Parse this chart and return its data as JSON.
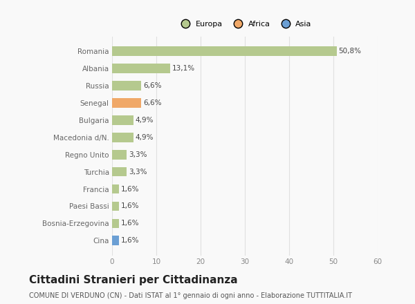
{
  "countries": [
    "Romania",
    "Albania",
    "Russia",
    "Senegal",
    "Bulgaria",
    "Macedonia d/N.",
    "Regno Unito",
    "Turchia",
    "Francia",
    "Paesi Bassi",
    "Bosnia-Erzegovina",
    "Cina"
  ],
  "values": [
    50.8,
    13.1,
    6.6,
    6.6,
    4.9,
    4.9,
    3.3,
    3.3,
    1.6,
    1.6,
    1.6,
    1.6
  ],
  "labels": [
    "50,8%",
    "13,1%",
    "6,6%",
    "6,6%",
    "4,9%",
    "4,9%",
    "3,3%",
    "3,3%",
    "1,6%",
    "1,6%",
    "1,6%",
    "1,6%"
  ],
  "bar_colors": [
    "#b5c98e",
    "#b5c98e",
    "#b5c98e",
    "#f0a868",
    "#b5c98e",
    "#b5c98e",
    "#b5c98e",
    "#b5c98e",
    "#b5c98e",
    "#b5c98e",
    "#b5c98e",
    "#6b9fd4"
  ],
  "xlim": [
    0,
    60
  ],
  "xticks": [
    0,
    10,
    20,
    30,
    40,
    50,
    60
  ],
  "title": "Cittadini Stranieri per Cittadinanza",
  "subtitle": "COMUNE DI VERDUNO (CN) - Dati ISTAT al 1° gennaio di ogni anno - Elaborazione TUTTITALIA.IT",
  "legend_labels": [
    "Europa",
    "Africa",
    "Asia"
  ],
  "legend_colors": [
    "#b5c98e",
    "#f0a868",
    "#6b9fd4"
  ],
  "bg_color": "#f9f9f9",
  "grid_color": "#e0e0e0",
  "label_fontsize": 7.5,
  "tick_fontsize": 7.5,
  "ylabel_fontsize": 7.5,
  "title_fontsize": 11,
  "subtitle_fontsize": 7,
  "bar_height": 0.55
}
